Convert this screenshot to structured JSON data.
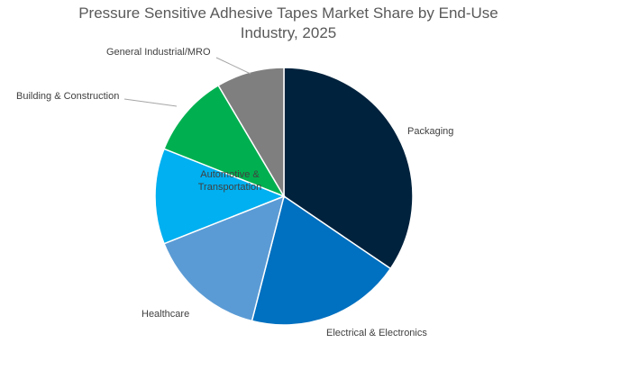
{
  "chart_data": {
    "type": "pie",
    "title_lines": [
      "Pressure Sensitive Adhesive Tapes Market Share by End-Use",
      "Industry, 2025"
    ],
    "legend": "none",
    "slices": [
      {
        "label": "Packaging",
        "value": 34.5,
        "color": "#00223d"
      },
      {
        "label": "Electrical & Electronics",
        "value": 19.5,
        "color": "#0070c0"
      },
      {
        "label": "Healthcare",
        "value": 15.0,
        "color": "#5b9bd5"
      },
      {
        "label": "Automotive & Transportation",
        "value": 12.0,
        "color": "#00b0f0"
      },
      {
        "label": "Building & Construction",
        "value": 10.5,
        "color": "#00b050"
      },
      {
        "label": "General Industrial/MRO",
        "value": 8.5,
        "color": "#7f7f7f"
      }
    ]
  }
}
